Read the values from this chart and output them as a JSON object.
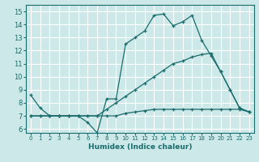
{
  "xlabel": "Humidex (Indice chaleur)",
  "xlim": [
    -0.5,
    23.5
  ],
  "ylim": [
    5.7,
    15.5
  ],
  "xticks": [
    0,
    1,
    2,
    3,
    4,
    5,
    6,
    7,
    8,
    9,
    10,
    11,
    12,
    13,
    14,
    15,
    16,
    17,
    18,
    19,
    20,
    21,
    22,
    23
  ],
  "yticks": [
    6,
    7,
    8,
    9,
    10,
    11,
    12,
    13,
    14,
    15
  ],
  "background_color": "#cde8e8",
  "line_color": "#1a6b6b",
  "grid_color": "#ffffff",
  "line1_x": [
    0,
    1,
    2,
    3,
    4,
    5,
    6,
    7,
    8,
    9,
    10,
    11,
    12,
    13,
    14,
    15,
    16,
    17,
    18,
    19,
    20,
    21,
    22,
    23
  ],
  "line1_y": [
    8.6,
    7.6,
    7.0,
    7.0,
    7.0,
    7.0,
    6.5,
    5.7,
    8.3,
    8.3,
    12.5,
    13.0,
    13.5,
    14.7,
    14.8,
    13.9,
    14.2,
    14.7,
    12.8,
    11.6,
    10.4,
    9.0,
    7.6,
    7.3
  ],
  "line2_x": [
    0,
    1,
    2,
    3,
    4,
    5,
    6,
    7,
    8,
    9,
    10,
    11,
    12,
    13,
    14,
    15,
    16,
    17,
    18,
    19,
    20,
    21,
    22,
    23
  ],
  "line2_y": [
    7.0,
    7.0,
    7.0,
    7.0,
    7.0,
    7.0,
    7.0,
    7.0,
    7.5,
    8.0,
    8.5,
    9.0,
    9.5,
    10.0,
    10.5,
    11.0,
    11.2,
    11.5,
    11.7,
    11.8,
    10.4,
    9.0,
    7.6,
    7.3
  ],
  "line3_x": [
    0,
    1,
    2,
    3,
    4,
    5,
    6,
    7,
    8,
    9,
    10,
    11,
    12,
    13,
    14,
    15,
    16,
    17,
    18,
    19,
    20,
    21,
    22,
    23
  ],
  "line3_y": [
    7.0,
    7.0,
    7.0,
    7.0,
    7.0,
    7.0,
    7.0,
    7.0,
    7.0,
    7.0,
    7.2,
    7.3,
    7.4,
    7.5,
    7.5,
    7.5,
    7.5,
    7.5,
    7.5,
    7.5,
    7.5,
    7.5,
    7.5,
    7.3
  ]
}
